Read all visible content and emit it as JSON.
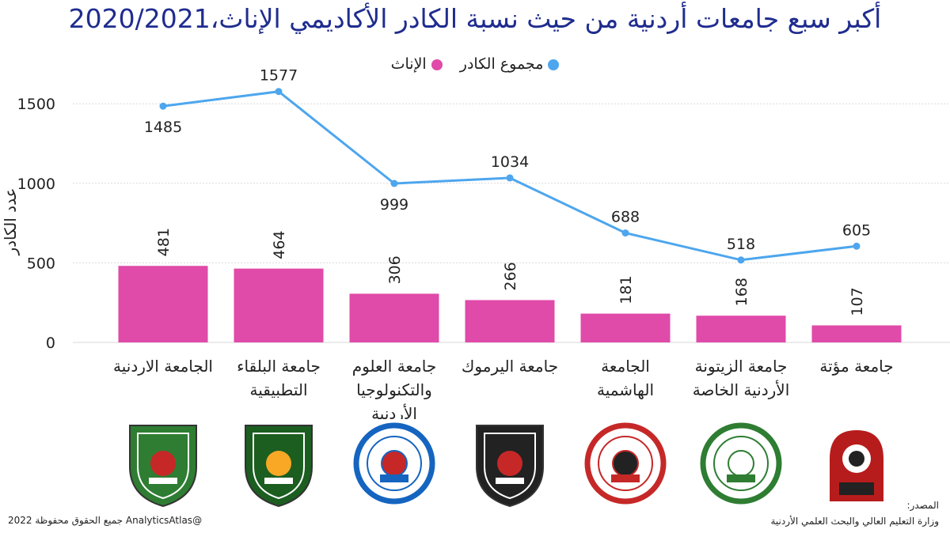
{
  "title": "أكبر سبع جامعات أردنية من حيث نسبة الكادر الأكاديمي الإناث،2020/2021",
  "legend": [
    {
      "label": "مجموع الكادر",
      "color": "#4da6ee"
    },
    {
      "label": "الإناث",
      "color": "#e04aa9"
    }
  ],
  "chart_data": {
    "type": "bar",
    "categories": [
      [
        "الجامعة الاردنية"
      ],
      [
        "جامعة البلقاء",
        "التطبيقية"
      ],
      [
        "جامعة العلوم",
        "والتكنولوجيا",
        "الأردنية"
      ],
      [
        "جامعة اليرموك"
      ],
      [
        "الجامعة",
        "الهاشمية"
      ],
      [
        "جامعة الزيتونة",
        "الأردنية الخاصة"
      ],
      [
        "جامعة مؤتة"
      ]
    ],
    "series": [
      {
        "name": "الإناث",
        "type": "bar",
        "color": "#e04aa9",
        "values": [
          481,
          464,
          306,
          266,
          181,
          168,
          107
        ]
      },
      {
        "name": "مجموع الكادر",
        "type": "line",
        "color": "#4da6ee",
        "values": [
          1485,
          1577,
          999,
          1034,
          688,
          518,
          605
        ]
      }
    ],
    "ylabel": "عدد الكادر",
    "yticks": [
      0,
      500,
      1000,
      1500
    ],
    "ylim": [
      0,
      1650
    ],
    "grid": true,
    "legend_position": "top"
  },
  "logos": [
    {
      "name": "university-of-jordan-logo",
      "shape": "shield",
      "color": "#2e7d32",
      "accent": "#c62828"
    },
    {
      "name": "balqa-applied-university-logo",
      "shape": "shield",
      "color": "#1b5e20",
      "accent": "#f9a825"
    },
    {
      "name": "just-logo",
      "shape": "circle",
      "color": "#1565c0",
      "accent": "#c62828"
    },
    {
      "name": "yarmouk-university-logo",
      "shape": "shield",
      "color": "#222222",
      "accent": "#c62828"
    },
    {
      "name": "hashemite-university-logo",
      "shape": "circle",
      "color": "#c62828",
      "accent": "#222222"
    },
    {
      "name": "zaytoonah-university-logo",
      "shape": "circle",
      "color": "#2e7d32",
      "accent": "#ffffff"
    },
    {
      "name": "mutah-university-logo",
      "shape": "arch",
      "color": "#b71c1c",
      "accent": "#222222"
    }
  ],
  "source_label": "المصدر:",
  "source_text": "وزارة التعليم العالي والبحث العلمي الأردنية",
  "copyright": "@AnalyticsAtlas جميع الحقوق محفوظة 2022"
}
